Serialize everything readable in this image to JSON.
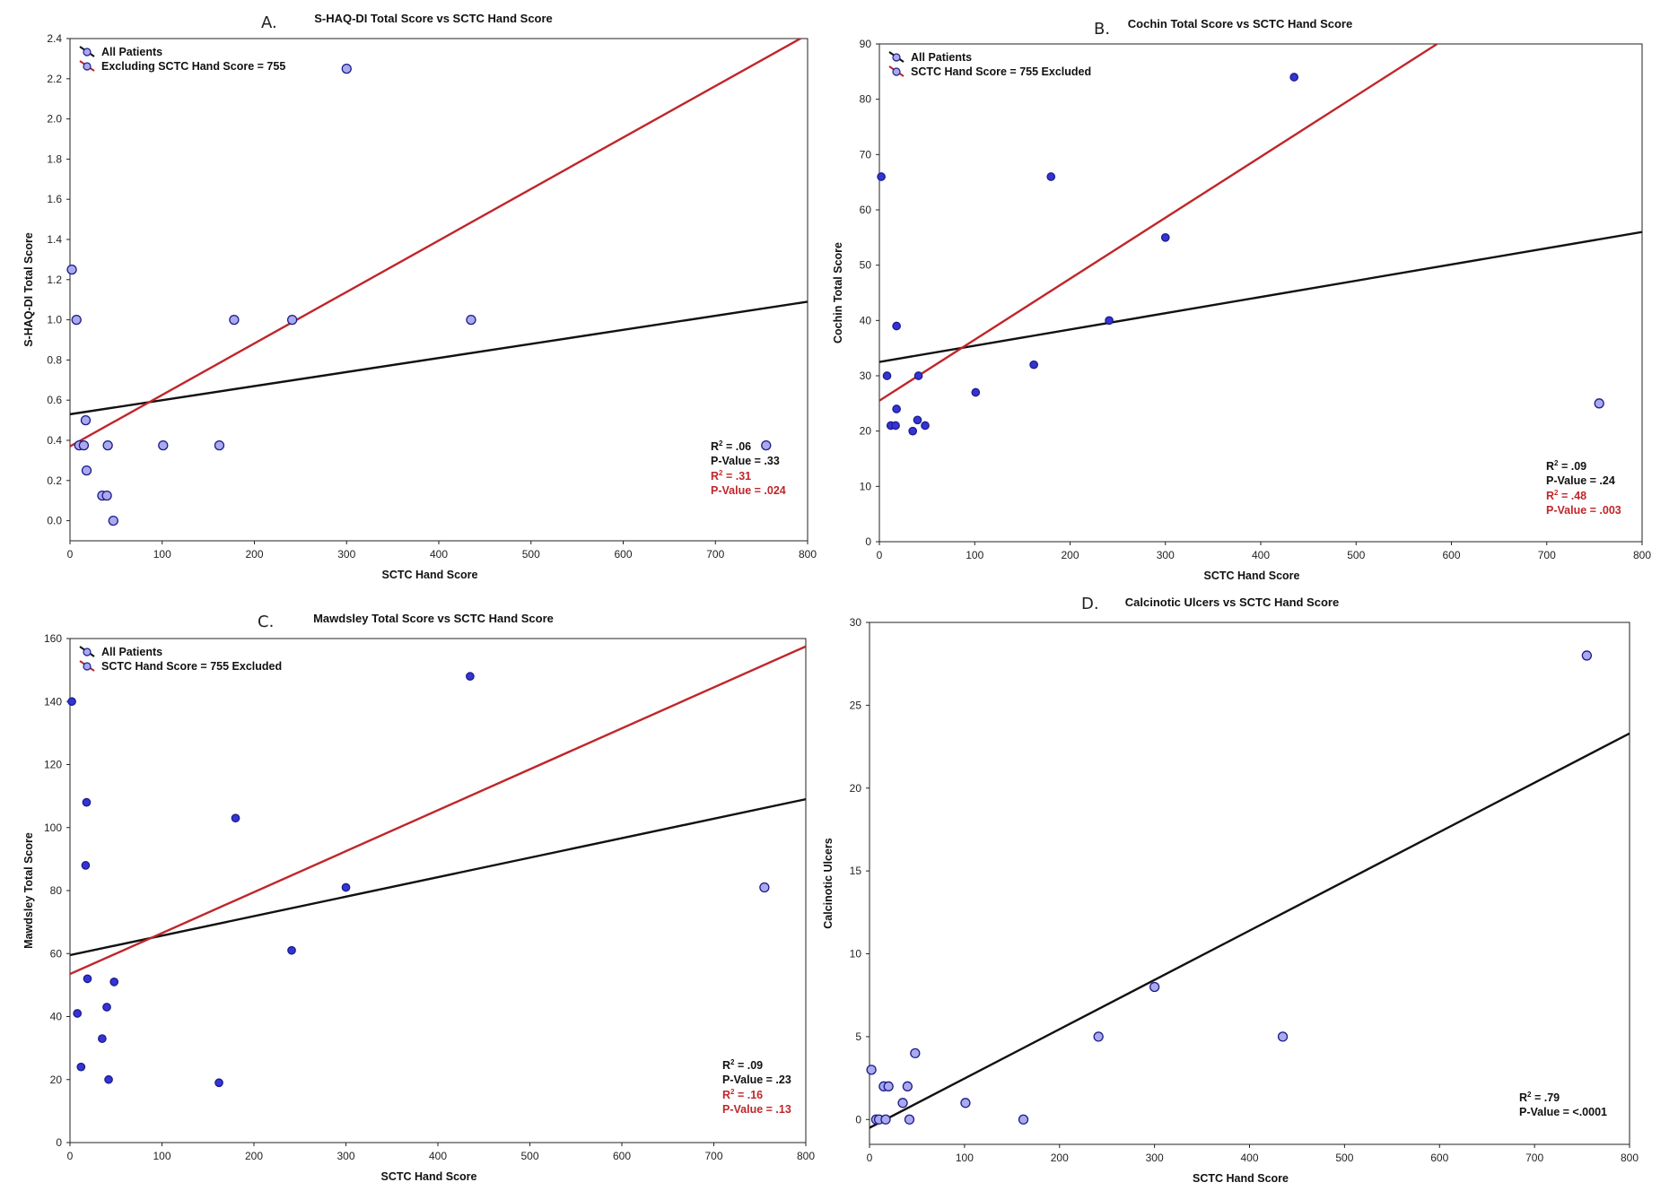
{
  "colors": {
    "all_patients_line": "#111111",
    "excluded_line": "#c0262a",
    "point_fill": "#a9a9ee",
    "point_stroke": "#1c1c8a",
    "point_dark_fill": "#3434d6",
    "frame": "#222222"
  },
  "chart_data": [
    {
      "type": "scatter",
      "panel": "A.",
      "title": "S-HAQ-DI Total Score vs SCTC Hand Score",
      "xlabel": "SCTC Hand Score",
      "ylabel": "S-HAQ-DI Total Score",
      "xlim": [
        0,
        800
      ],
      "ylim": [
        -0.1,
        2.4
      ],
      "x_ticks": [
        0,
        100,
        200,
        300,
        400,
        500,
        600,
        700,
        800
      ],
      "x_tick_labels": [
        "0",
        "100",
        "200",
        "300",
        "400",
        "500",
        "600",
        "700",
        "800"
      ],
      "y_ticks": [
        0,
        0.2,
        0.4,
        0.6,
        0.8,
        1.0,
        1.2,
        1.4,
        1.6,
        1.8,
        2.0,
        2.2,
        2.4
      ],
      "y_tick_labels": [
        "0.0",
        "0.2",
        "0.4",
        "0.6",
        "0.8",
        "1.0",
        "1.2",
        "1.4",
        "1.6",
        "1.8",
        "2.0",
        "2.2",
        "2.4"
      ],
      "legend": [
        "All Patients",
        "Excluding SCTC Hand Score = 755"
      ],
      "points": {
        "x": [
          2,
          7,
          10,
          15,
          17,
          18,
          35,
          40,
          41,
          47,
          101,
          162,
          178,
          241,
          300,
          435,
          755
        ],
        "y": [
          1.25,
          1.0,
          0.375,
          0.375,
          0.5,
          0.25,
          0.125,
          0.125,
          0.375,
          0.0,
          0.375,
          0.375,
          1.0,
          1.0,
          2.25,
          1.0,
          0.375
        ]
      },
      "series": [
        {
          "name": "All Patients",
          "color": "#111111",
          "line": [
            [
              0,
              0.53
            ],
            [
              800,
              1.09
            ]
          ]
        },
        {
          "name": "Excluding SCTC Hand Score = 755",
          "color": "#c0262a",
          "line": [
            [
              0,
              0.37
            ],
            [
              800,
              2.42
            ]
          ]
        }
      ],
      "stats": [
        {
          "r2_label": "R",
          "r2_value": "= .06",
          "p": "P-Value = .33",
          "color": "#111111"
        },
        {
          "r2_label": "R",
          "r2_value": "= .31",
          "p": "P-Value = .024",
          "color": "#c0262a"
        }
      ]
    },
    {
      "type": "scatter",
      "panel": "B.",
      "title": "Cochin Total Score vs SCTC Hand Score",
      "xlabel": "SCTC Hand Score",
      "ylabel": "Cochin Total Score",
      "xlim": [
        0,
        800
      ],
      "ylim": [
        0,
        90
      ],
      "x_ticks": [
        0,
        100,
        200,
        300,
        400,
        500,
        600,
        700,
        800
      ],
      "x_tick_labels": [
        "0",
        "100",
        "200",
        "300",
        "400",
        "500",
        "600",
        "700",
        "800"
      ],
      "y_ticks": [
        0,
        10,
        20,
        30,
        40,
        50,
        60,
        70,
        80,
        90
      ],
      "y_tick_labels": [
        "0",
        "10",
        "20",
        "30",
        "40",
        "50",
        "60",
        "70",
        "80",
        "90"
      ],
      "legend": [
        "All Patients",
        "SCTC Hand Score = 755 Excluded"
      ],
      "points": {
        "x": [
          2,
          8,
          12,
          17,
          18,
          18,
          35,
          40,
          41,
          48,
          101,
          162,
          180,
          241,
          300,
          435,
          755
        ],
        "y": [
          66,
          30,
          21,
          21,
          24,
          39,
          20,
          22,
          30,
          21,
          27,
          32,
          66,
          40,
          55,
          84,
          25
        ]
      },
      "series": [
        {
          "name": "All Patients",
          "color": "#111111",
          "line": [
            [
              0,
              32.5
            ],
            [
              800,
              56
            ]
          ]
        },
        {
          "name": "SCTC Hand Score = 755 Excluded",
          "color": "#c0262a",
          "line": [
            [
              0,
              25.5
            ],
            [
              585,
              90
            ]
          ]
        }
      ],
      "stats": [
        {
          "r2_label": "R",
          "r2_value": "= .09",
          "p": "P-Value = .24",
          "color": "#111111"
        },
        {
          "r2_label": "R",
          "r2_value": "= .48",
          "p": "P-Value = .003",
          "color": "#c0262a"
        }
      ]
    },
    {
      "type": "scatter",
      "panel": "C.",
      "title": "Mawdsley Total Score vs SCTC Hand Score",
      "xlabel": "SCTC Hand Score",
      "ylabel": "Mawdsley Total Score",
      "xlim": [
        0,
        800
      ],
      "ylim": [
        0,
        160
      ],
      "x_ticks": [
        0,
        100,
        200,
        300,
        400,
        500,
        600,
        700,
        800
      ],
      "x_tick_labels": [
        "0",
        "100",
        "200",
        "300",
        "400",
        "500",
        "600",
        "700",
        "800"
      ],
      "y_ticks": [
        0,
        20,
        40,
        60,
        80,
        100,
        120,
        140,
        160
      ],
      "y_tick_labels": [
        "0",
        "20",
        "40",
        "60",
        "80",
        "100",
        "120",
        "140",
        "160"
      ],
      "legend": [
        "All Patients",
        "SCTC Hand Score = 755 Excluded"
      ],
      "points": {
        "x": [
          2,
          8,
          12,
          17,
          18,
          19,
          35,
          40,
          42,
          48,
          162,
          180,
          241,
          300,
          435,
          755
        ],
        "y": [
          140,
          41,
          24,
          88,
          108,
          52,
          33,
          43,
          20,
          51,
          19,
          103,
          61,
          81,
          148,
          81
        ]
      },
      "series": [
        {
          "name": "All Patients",
          "color": "#111111",
          "line": [
            [
              0,
              59.5
            ],
            [
              800,
              109
            ]
          ]
        },
        {
          "name": "SCTC Hand Score = 755 Excluded",
          "color": "#c0262a",
          "line": [
            [
              0,
              53.5
            ],
            [
              800,
              157.5
            ]
          ]
        }
      ],
      "stats": [
        {
          "r2_label": "R",
          "r2_value": "= .09",
          "p": "P-Value = .23",
          "color": "#111111"
        },
        {
          "r2_label": "R",
          "r2_value": "= .16",
          "p": "P-Value = .13",
          "color": "#c0262a"
        }
      ]
    },
    {
      "type": "scatter",
      "panel": "D.",
      "title": "Calcinotic Ulcers vs SCTC Hand Score",
      "xlabel": "SCTC Hand Score",
      "ylabel": "Calcinotic Ulcers",
      "xlim": [
        0,
        800
      ],
      "ylim": [
        -1.5,
        30
      ],
      "x_ticks": [
        0,
        100,
        200,
        300,
        400,
        500,
        600,
        700,
        800
      ],
      "x_tick_labels": [
        "0",
        "100",
        "200",
        "300",
        "400",
        "500",
        "600",
        "700",
        "800"
      ],
      "y_ticks": [
        0,
        5,
        10,
        15,
        20,
        25,
        30
      ],
      "y_tick_labels": [
        "0",
        "5",
        "10",
        "15",
        "20",
        "25",
        "30"
      ],
      "legend": [],
      "points": {
        "x": [
          2,
          7,
          10,
          15,
          17,
          20,
          35,
          40,
          42,
          48,
          101,
          162,
          241,
          300,
          435,
          755
        ],
        "y": [
          3,
          0,
          0,
          2,
          0,
          2,
          1,
          2,
          0,
          4,
          1,
          0,
          5,
          8,
          5,
          28
        ]
      },
      "series": [
        {
          "name": "All Patients",
          "color": "#111111",
          "line": [
            [
              0,
              -0.5
            ],
            [
              800,
              23.3
            ]
          ]
        }
      ],
      "stats": [
        {
          "r2_label": "R",
          "r2_value": "= .79",
          "p": "P-Value = <.0001",
          "color": "#111111"
        }
      ]
    }
  ]
}
